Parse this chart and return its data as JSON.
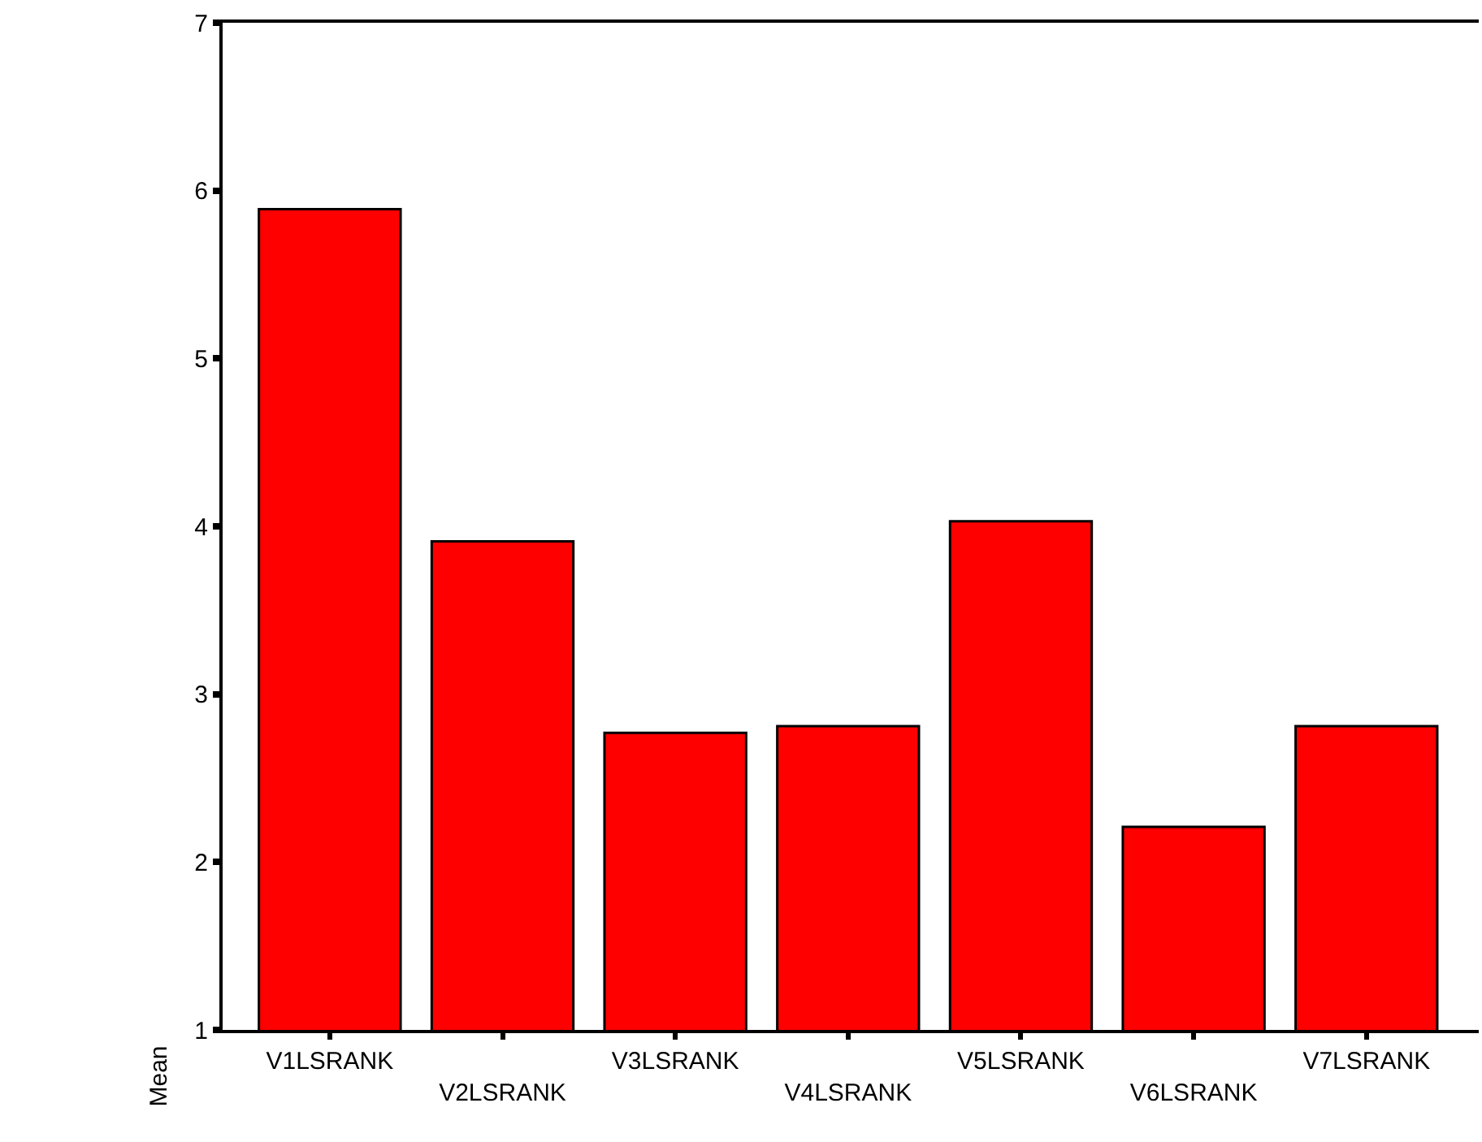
{
  "chart_data": {
    "type": "bar",
    "ylabel": "Mean",
    "categories": [
      "V1LSRANK",
      "V2LSRANK",
      "V3LSRANK",
      "V4LSRANK",
      "V5LSRANK",
      "V6LSRANK",
      "V7LSRANK"
    ],
    "values": [
      5.89,
      3.91,
      2.77,
      2.81,
      4.03,
      2.21,
      2.81
    ],
    "color": "#ff0000",
    "ylim": [
      1,
      7
    ],
    "yticks": [
      1,
      2,
      3,
      4,
      5,
      6,
      7
    ]
  }
}
